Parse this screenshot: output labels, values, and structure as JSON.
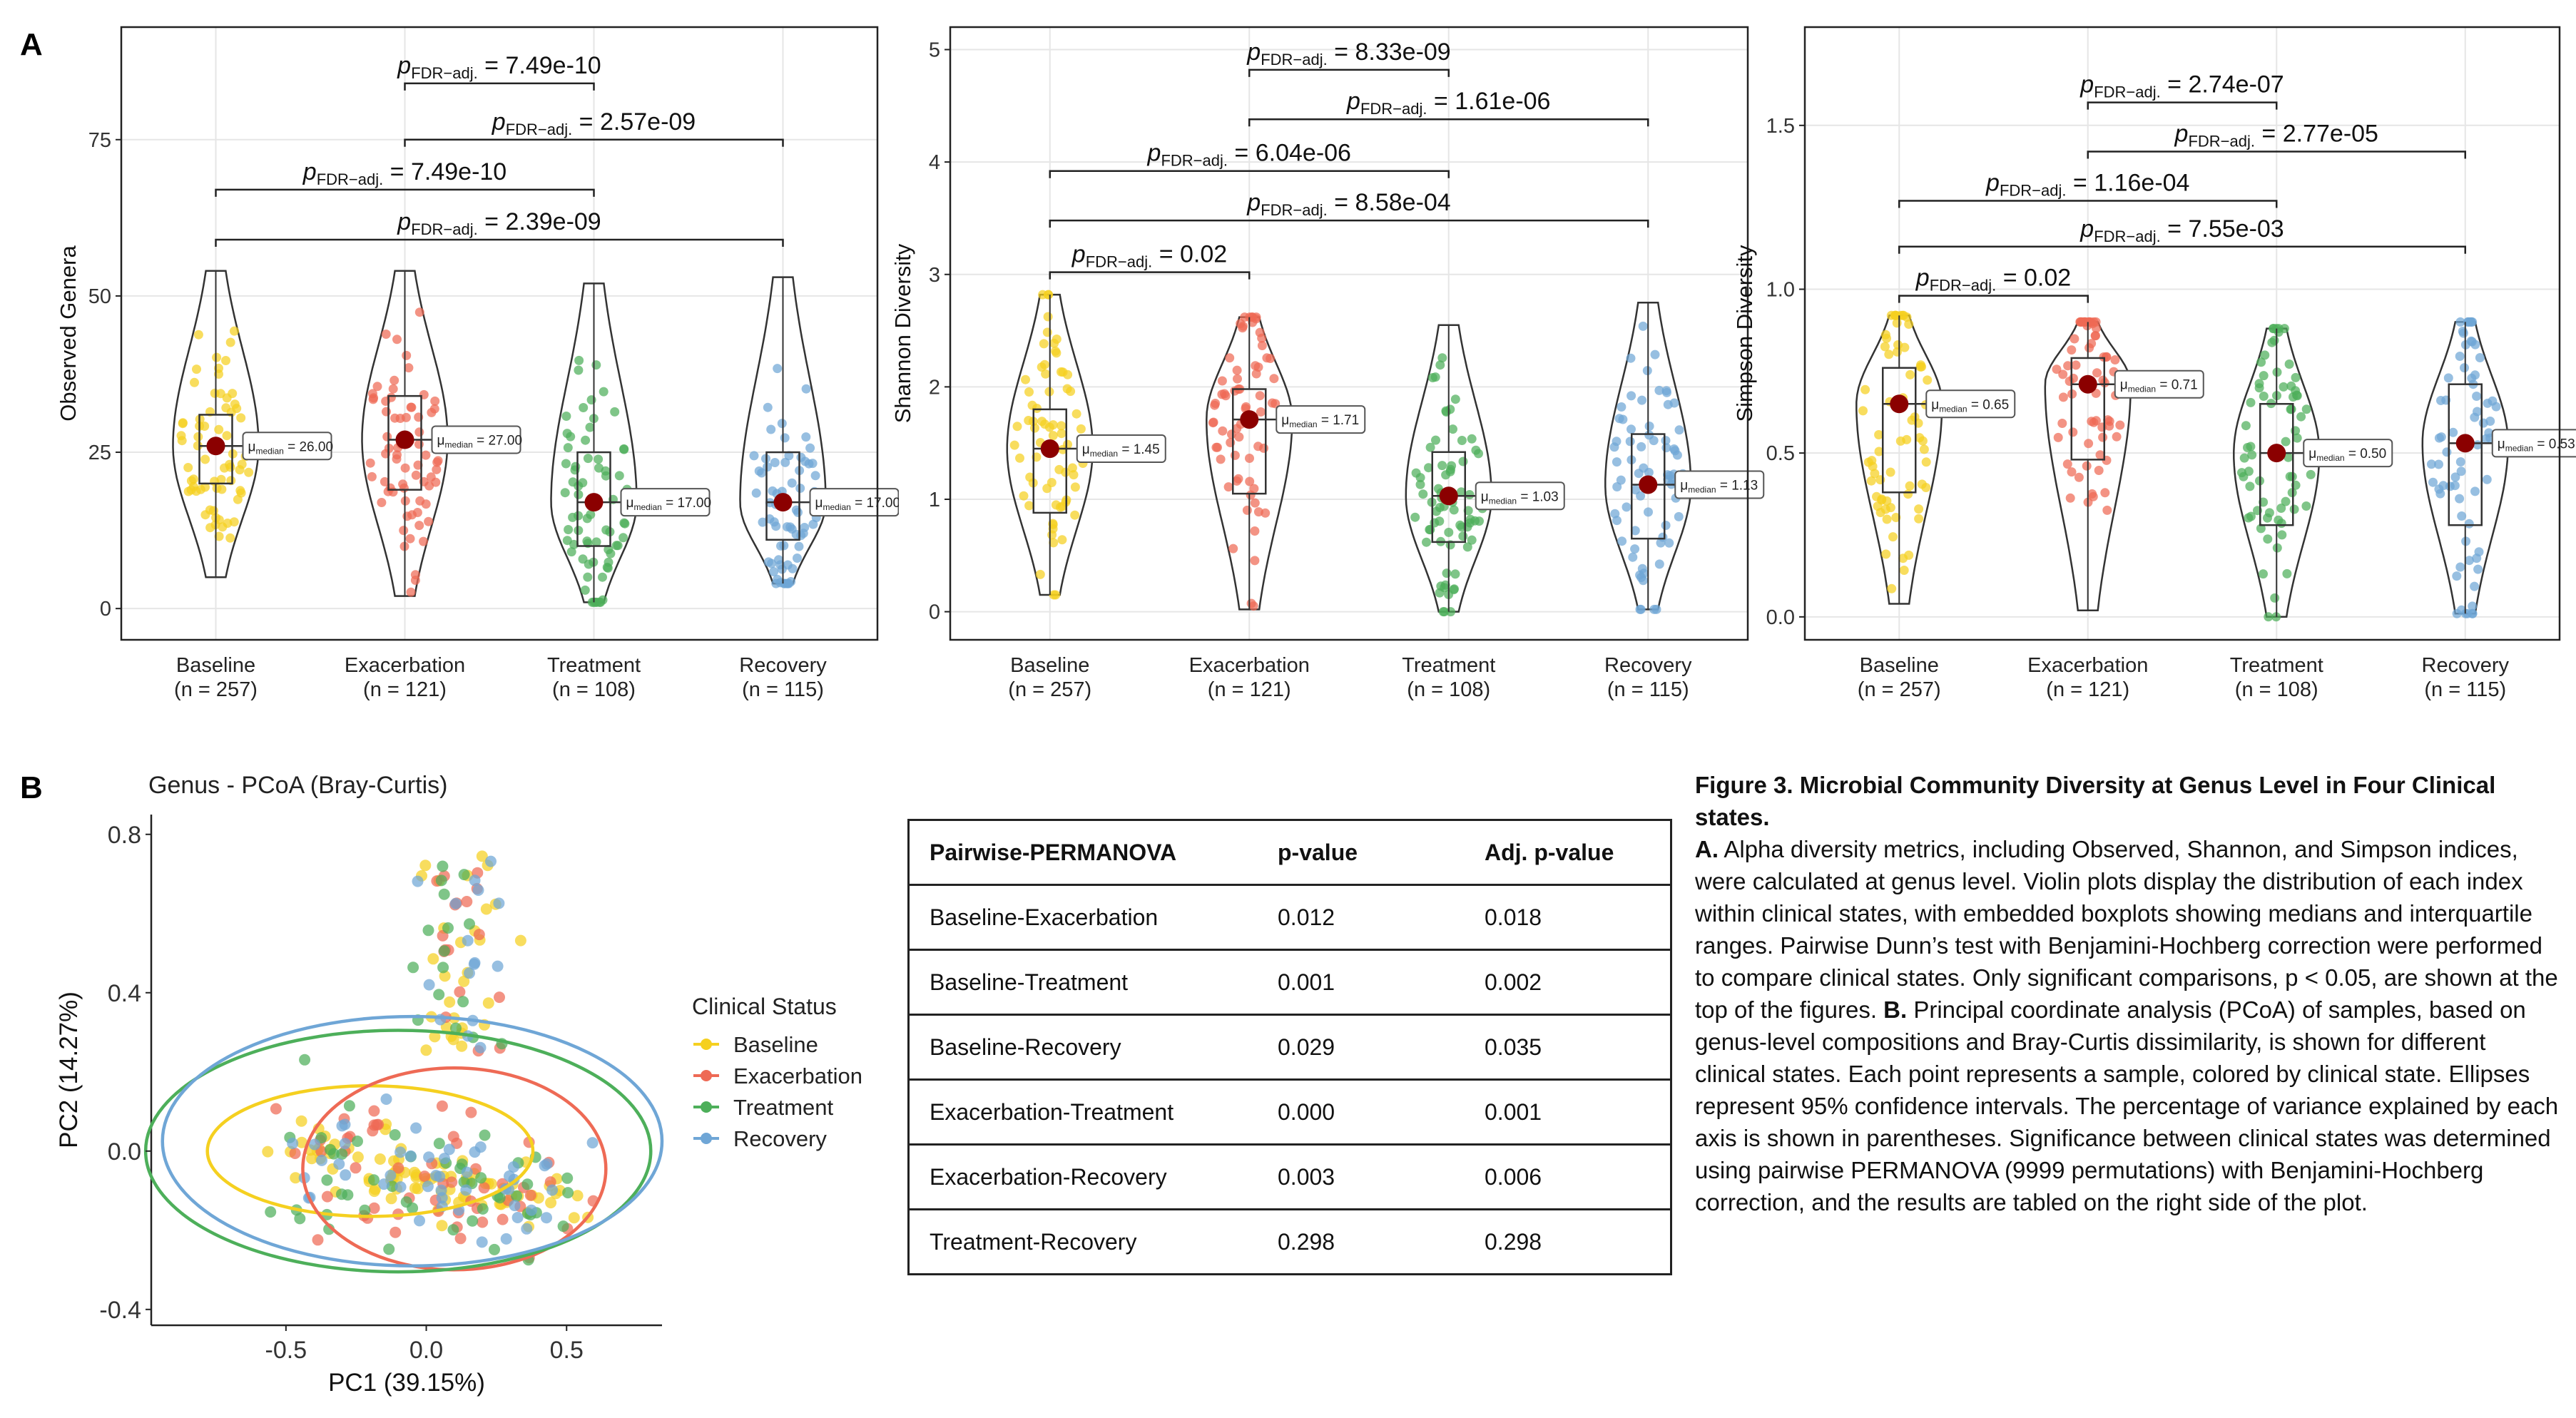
{
  "figure": {
    "letter_a": "A",
    "letter_b": "B",
    "caption_title": "Figure 3. Microbial Community Diversity at Genus Level in Four Clinical states.",
    "caption_a_label": "A.",
    "caption_a_text": "Alpha diversity metrics, including Observed, Shannon, and Simpson indices, were calculated at genus level. Violin plots display the distribution of each index within clinical states, with embedded boxplots showing medians and interquartile ranges. Pairwise Dunn’s test with Benjamini-Hochberg correction were performed to compare clinical states. Only significant comparisons, p < 0.05, are shown at the top of the figures.",
    "caption_b_label": "B.",
    "caption_b_text": "Principal coordinate analysis (PCoA) of samples, based on genus-level compositions and Bray-Curtis dissimilarity, is shown for different clinical states. Each point represents a sample, colored by clinical state. Ellipses represent 95% confidence intervals. The percentage of variance explained by each axis is shown in parentheses. Significance between clinical states was determined using pairwise PERMANOVA (9999 permutations) with Benjamini-Hochberg correction, and the results are tabled on the right side of the plot."
  },
  "colors": {
    "baseline": "#F5D020",
    "exacerbation": "#EE6A55",
    "treatment": "#4DAF5A",
    "recovery": "#6FA6D6",
    "median_point": "#8B0000",
    "grid": "#E6E6E6",
    "bracket": "#222222"
  },
  "chart_data": [
    {
      "type": "violin",
      "panel": "A-observed",
      "ylabel": "Observed Genera",
      "ylim": [
        -5,
        93
      ],
      "yticks": [
        0,
        25,
        50,
        75
      ],
      "categories": [
        "Baseline",
        "Exacerbation",
        "Treatment",
        "Recovery"
      ],
      "counts": [
        "(n = 257)",
        "(n = 121)",
        "(n = 108)",
        "(n = 115)"
      ],
      "medians": [
        26.0,
        27.0,
        17.0,
        17.0
      ],
      "median_labels": [
        "= 26.00",
        "= 27.00",
        "= 17.00",
        "= 17.00"
      ],
      "q1": [
        20,
        19,
        10,
        11
      ],
      "q3": [
        31,
        34,
        25,
        25
      ],
      "whisker_low": [
        5,
        2,
        1,
        4
      ],
      "whisker_high": [
        54,
        54,
        52,
        53
      ],
      "comparisons": [
        {
          "from": 0,
          "to": 3,
          "p": "= 2.39e-09"
        },
        {
          "from": 0,
          "to": 2,
          "p": "= 7.49e-10"
        },
        {
          "from": 1,
          "to": 3,
          "p": "= 2.57e-09"
        },
        {
          "from": 1,
          "to": 2,
          "p": "= 7.49e-10"
        }
      ],
      "bracket_y": [
        59,
        67,
        75,
        84
      ]
    },
    {
      "type": "violin",
      "panel": "A-shannon",
      "ylabel": "Shannon Diversity",
      "ylim": [
        -0.25,
        5.2
      ],
      "yticks": [
        0,
        1,
        2,
        3,
        4,
        5
      ],
      "categories": [
        "Baseline",
        "Exacerbation",
        "Treatment",
        "Recovery"
      ],
      "counts": [
        "(n = 257)",
        "(n = 121)",
        "(n = 108)",
        "(n = 115)"
      ],
      "medians": [
        1.45,
        1.71,
        1.03,
        1.13
      ],
      "median_labels": [
        "= 1.45",
        "= 1.71",
        "= 1.03",
        "= 1.13"
      ],
      "q1": [
        0.88,
        1.05,
        0.62,
        0.65
      ],
      "q3": [
        1.8,
        1.98,
        1.42,
        1.58
      ],
      "whisker_low": [
        0.15,
        0.02,
        0.0,
        0.02
      ],
      "whisker_high": [
        2.82,
        2.62,
        2.55,
        2.75
      ],
      "comparisons": [
        {
          "from": 0,
          "to": 1,
          "p": "= 0.02"
        },
        {
          "from": 0,
          "to": 3,
          "p": "= 8.58e-04"
        },
        {
          "from": 0,
          "to": 2,
          "p": "= 6.04e-06"
        },
        {
          "from": 1,
          "to": 3,
          "p": "= 1.61e-06"
        },
        {
          "from": 1,
          "to": 2,
          "p": "= 8.33e-09"
        }
      ],
      "bracket_y": [
        3.02,
        3.48,
        3.92,
        4.38,
        4.82
      ]
    },
    {
      "type": "violin",
      "panel": "A-simpson",
      "ylabel": "Simpson Diversity",
      "ylim": [
        -0.07,
        1.8
      ],
      "yticks": [
        0.0,
        0.5,
        1.0,
        1.5
      ],
      "categories": [
        "Baseline",
        "Exacerbation",
        "Treatment",
        "Recovery"
      ],
      "counts": [
        "(n = 257)",
        "(n = 121)",
        "(n = 108)",
        "(n = 115)"
      ],
      "medians": [
        0.65,
        0.71,
        0.5,
        0.53
      ],
      "median_labels": [
        "= 0.65",
        "= 0.71",
        "= 0.50",
        "= 0.53"
      ],
      "q1": [
        0.38,
        0.48,
        0.28,
        0.28
      ],
      "q3": [
        0.76,
        0.79,
        0.65,
        0.71
      ],
      "whisker_low": [
        0.04,
        0.02,
        0.0,
        0.01
      ],
      "whisker_high": [
        0.92,
        0.9,
        0.88,
        0.9
      ],
      "comparisons": [
        {
          "from": 0,
          "to": 1,
          "p": "= 0.02"
        },
        {
          "from": 0,
          "to": 3,
          "p": "= 7.55e-03"
        },
        {
          "from": 0,
          "to": 2,
          "p": "= 1.16e-04"
        },
        {
          "from": 1,
          "to": 3,
          "p": "= 2.77e-05"
        },
        {
          "from": 1,
          "to": 2,
          "p": "= 2.74e-07"
        }
      ],
      "bracket_y": [
        0.98,
        1.13,
        1.27,
        1.42,
        1.57
      ]
    },
    {
      "type": "scatter",
      "panel": "B-pcoa",
      "title": "Genus - PCoA (Bray-Curtis)",
      "xlabel": "PC1 (39.15%)",
      "ylabel": "PC2 (14.27%)",
      "xlim": [
        -0.98,
        0.84
      ],
      "ylim": [
        -0.44,
        0.85
      ],
      "xticks": [
        -0.5,
        0.0,
        0.5
      ],
      "yticks": [
        -0.4,
        0.0,
        0.4,
        0.8
      ],
      "legend_title": "Clinical Status",
      "legend_position": "right",
      "series": [
        {
          "name": "Baseline",
          "ellipse": {
            "cx": -0.2,
            "cy": 0.0,
            "rx": 0.58,
            "ry": 0.165
          },
          "center": [
            0.05,
            -0.06
          ],
          "spread": [
            0.2,
            0.07
          ],
          "count": 120
        },
        {
          "name": "Exacerbation",
          "ellipse": {
            "cx": 0.1,
            "cy": -0.045,
            "rx": 0.54,
            "ry": 0.255
          },
          "center": [
            0.02,
            -0.04
          ],
          "spread": [
            0.22,
            0.13
          ],
          "count": 70
        },
        {
          "name": "Treatment",
          "ellipse": {
            "cx": -0.1,
            "cy": 0.0,
            "rx": 0.9,
            "ry": 0.305
          },
          "center": [
            0.05,
            0.0
          ],
          "spread": [
            0.24,
            0.16
          ],
          "count": 65
        },
        {
          "name": "Recovery",
          "ellipse": {
            "cx": -0.05,
            "cy": 0.025,
            "rx": 0.89,
            "ry": 0.315
          },
          "center": [
            0.0,
            -0.02
          ],
          "spread": [
            0.26,
            0.15
          ],
          "count": 65
        }
      ]
    }
  ],
  "permanova_table": {
    "headers": [
      "Pairwise-PERMANOVA",
      "p-value",
      "Adj. p-value"
    ],
    "rows": [
      [
        "Baseline-Exacerbation",
        "0.012",
        "0.018"
      ],
      [
        "Baseline-Treatment",
        "0.001",
        "0.002"
      ],
      [
        "Baseline-Recovery",
        "0.029",
        "0.035"
      ],
      [
        "Exacerbation-Treatment",
        "0.000",
        "0.001"
      ],
      [
        "Exacerbation-Recovery",
        "0.003",
        "0.006"
      ],
      [
        "Treatment-Recovery",
        "0.298",
        "0.298"
      ]
    ]
  },
  "labels": {
    "p_symbol": "p",
    "p_subscript": "FDR−adj.",
    "mu_symbol": "μ",
    "mu_subscript": "median"
  }
}
